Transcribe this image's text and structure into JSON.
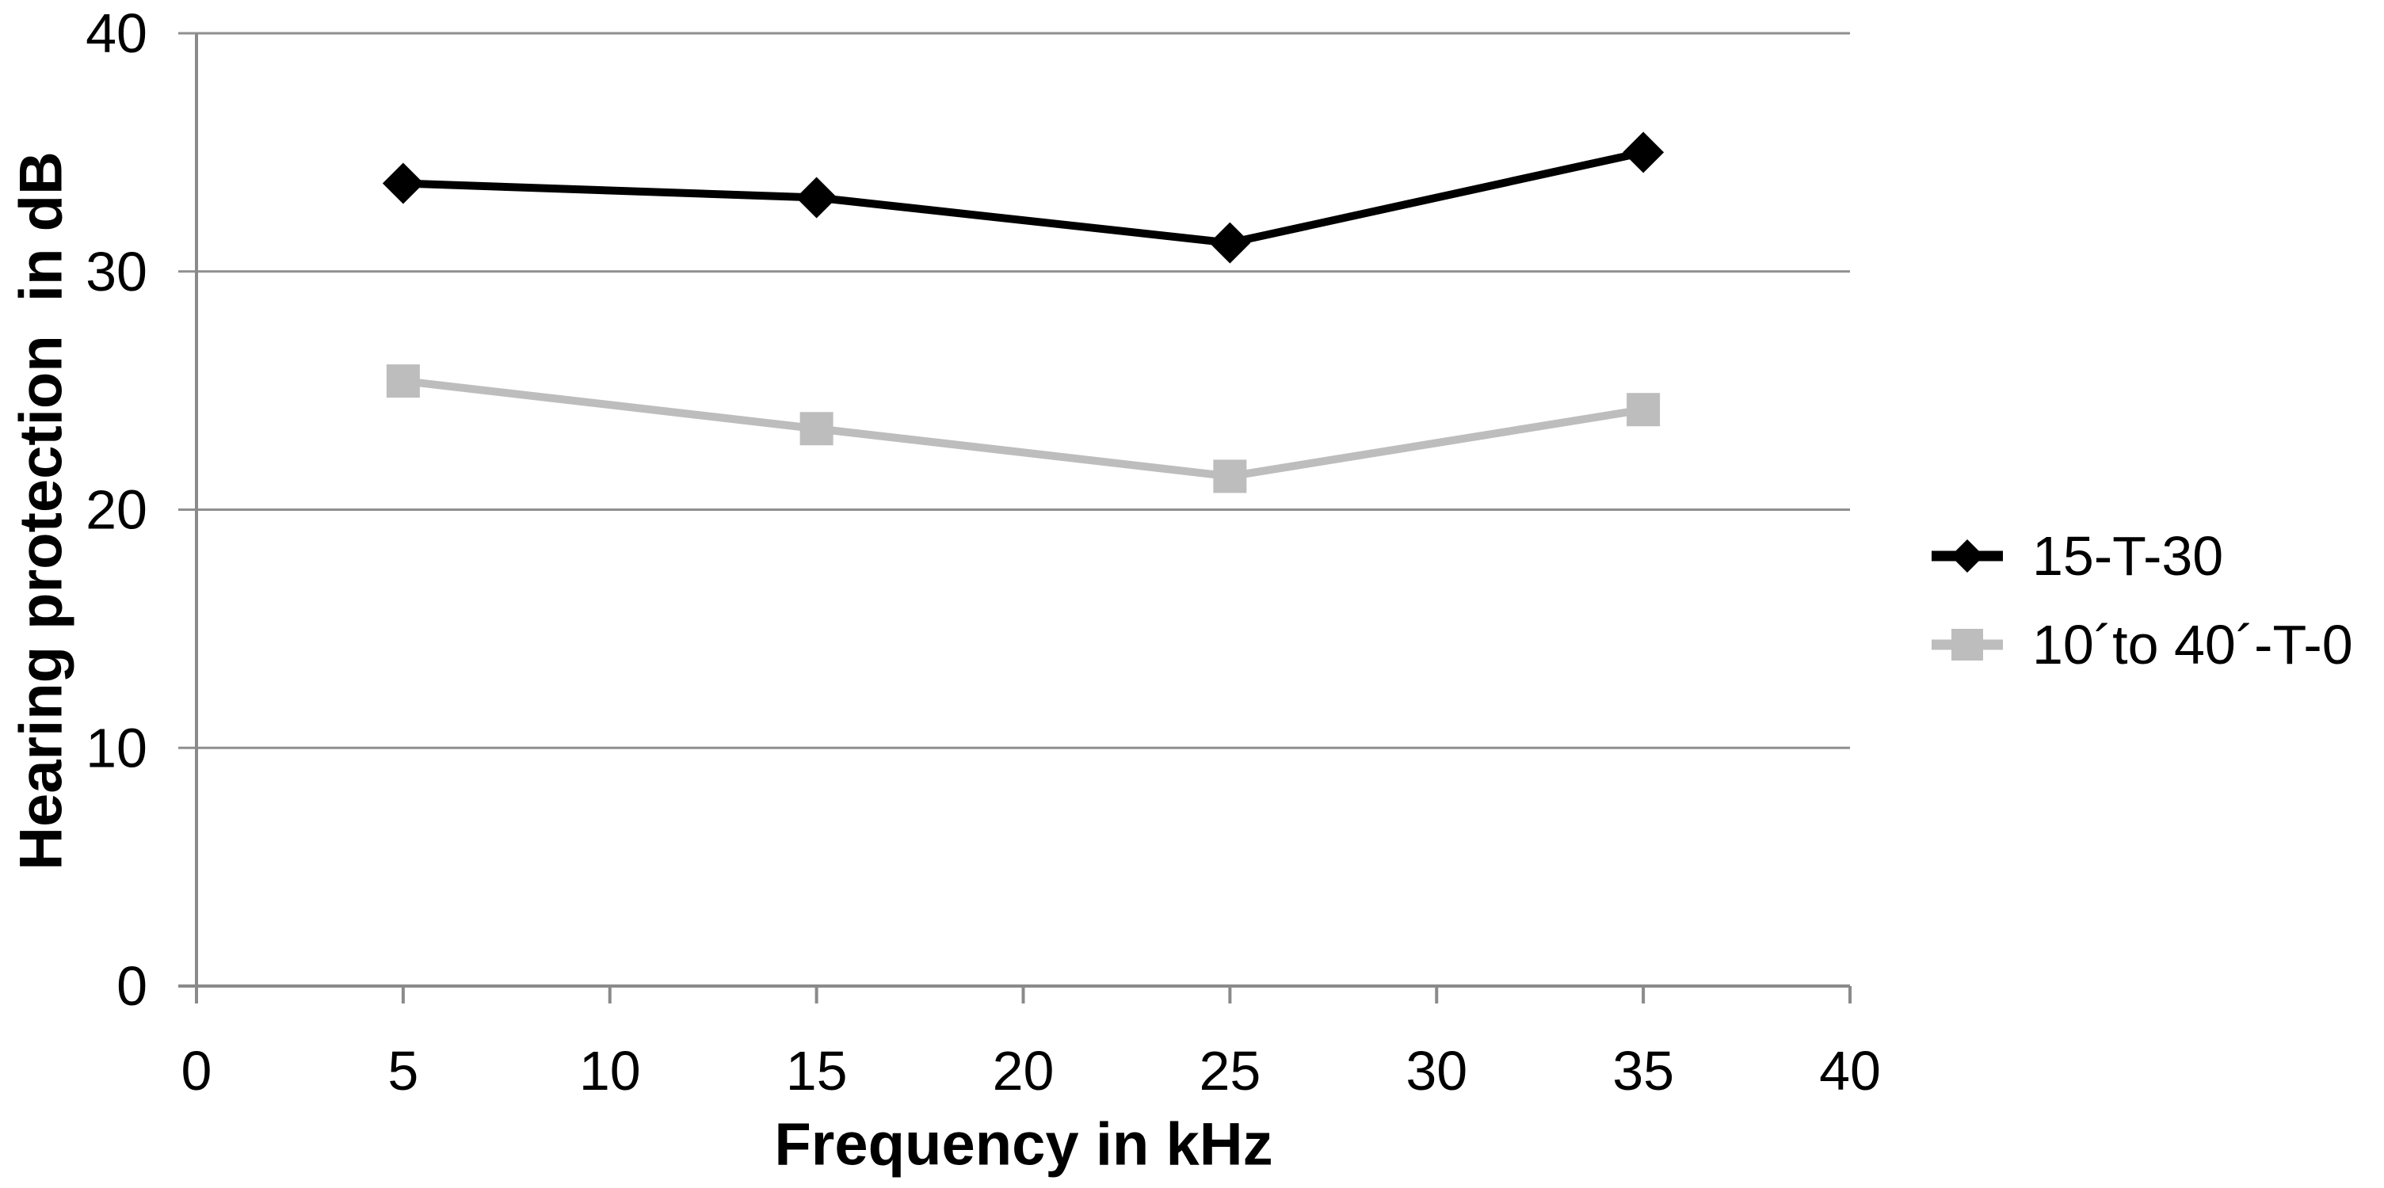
{
  "chart_data": {
    "type": "line",
    "title": "",
    "xlabel": "Frequency in kHz",
    "ylabel": "Hearing protection  in dB",
    "x": [
      5,
      15,
      25,
      35
    ],
    "xlim": [
      0,
      40
    ],
    "ylim": [
      0,
      40
    ],
    "x_ticks": [
      0,
      5,
      10,
      15,
      20,
      25,
      30,
      35,
      40
    ],
    "y_ticks": [
      0,
      10,
      20,
      30,
      40
    ],
    "grid": "horizontal-on",
    "legend_position": "right-middle",
    "series": [
      {
        "name": "15-T-30",
        "color": "#000000",
        "marker": "diamond",
        "values": [
          33.7,
          33.1,
          31.2,
          35.0
        ]
      },
      {
        "name": "10´to 40´-T-0",
        "color": "#bdbdbd",
        "marker": "square",
        "values": [
          25.4,
          23.4,
          21.4,
          24.2
        ]
      }
    ],
    "colors": {
      "axis": "#8a8a8a",
      "gridline": "#8f8f8f",
      "text": "#000000",
      "background": "#ffffff"
    }
  }
}
